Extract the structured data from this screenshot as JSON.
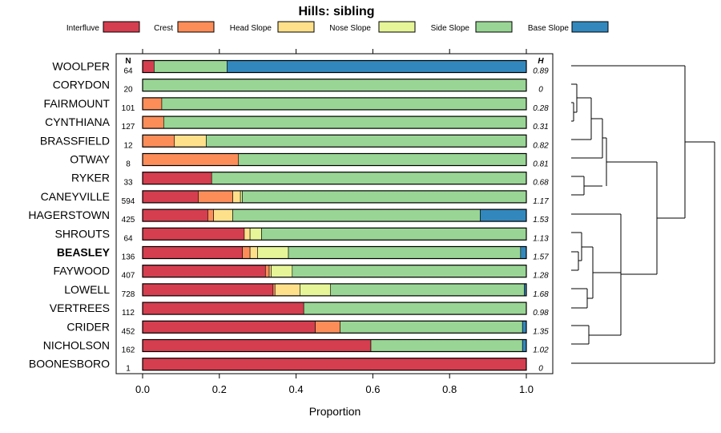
{
  "chart_data": {
    "type": "bar",
    "orientation": "horizontal",
    "stacked": true,
    "title": "Hills: sibling",
    "xlabel": "Proportion",
    "xlim": [
      0,
      1
    ],
    "xticks": [
      "0.0",
      "0.2",
      "0.4",
      "0.6",
      "0.8",
      "1.0"
    ],
    "n_header": "N",
    "h_header": "H",
    "legend_position": "top",
    "series": [
      {
        "name": "Interfluve",
        "color": "#D53E4F"
      },
      {
        "name": "Crest",
        "color": "#FC8D59"
      },
      {
        "name": "Head Slope",
        "color": "#FEE08B"
      },
      {
        "name": "Nose Slope",
        "color": "#E6F598"
      },
      {
        "name": "Side Slope",
        "color": "#99D594"
      },
      {
        "name": "Base Slope",
        "color": "#3288BD"
      }
    ],
    "rows": [
      {
        "label": "WOOLPER",
        "n": "64",
        "h": "0.89",
        "bold": false,
        "values": [
          0.03,
          0,
          0,
          0,
          0.19,
          0.78
        ]
      },
      {
        "label": "CORYDON",
        "n": "20",
        "h": "0",
        "bold": false,
        "values": [
          0,
          0,
          0,
          0,
          1.0,
          0
        ]
      },
      {
        "label": "FAIRMOUNT",
        "n": "101",
        "h": "0.28",
        "bold": false,
        "values": [
          0,
          0.05,
          0,
          0,
          0.95,
          0
        ]
      },
      {
        "label": "CYNTHIANA",
        "n": "127",
        "h": "0.31",
        "bold": false,
        "values": [
          0,
          0.055,
          0,
          0,
          0.945,
          0
        ]
      },
      {
        "label": "BRASSFIELD",
        "n": "12",
        "h": "0.82",
        "bold": false,
        "values": [
          0,
          0.083,
          0.083,
          0,
          0.834,
          0
        ]
      },
      {
        "label": "OTWAY",
        "n": "8",
        "h": "0.81",
        "bold": false,
        "values": [
          0,
          0.25,
          0,
          0,
          0.75,
          0
        ]
      },
      {
        "label": "RYKER",
        "n": "33",
        "h": "0.68",
        "bold": false,
        "values": [
          0.18,
          0,
          0,
          0,
          0.82,
          0
        ]
      },
      {
        "label": "CANEYVILLE",
        "n": "594",
        "h": "1.17",
        "bold": false,
        "values": [
          0.145,
          0.09,
          0.02,
          0.005,
          0.74,
          0
        ]
      },
      {
        "label": "HAGERSTOWN",
        "n": "425",
        "h": "1.53",
        "bold": false,
        "values": [
          0.17,
          0.015,
          0.05,
          0,
          0.645,
          0.12
        ]
      },
      {
        "label": "SHROUTS",
        "n": "64",
        "h": "1.13",
        "bold": false,
        "values": [
          0.265,
          0,
          0.015,
          0.03,
          0.69,
          0
        ]
      },
      {
        "label": "BEASLEY",
        "n": "136",
        "h": "1.57",
        "bold": true,
        "values": [
          0.26,
          0.02,
          0.02,
          0.08,
          0.605,
          0.015
        ]
      },
      {
        "label": "FAYWOOD",
        "n": "407",
        "h": "1.28",
        "bold": false,
        "values": [
          0.32,
          0.01,
          0.005,
          0.055,
          0.61,
          0
        ]
      },
      {
        "label": "LOWELL",
        "n": "728",
        "h": "1.68",
        "bold": false,
        "values": [
          0.34,
          0.005,
          0.065,
          0.08,
          0.505,
          0.005
        ]
      },
      {
        "label": "VERTREES",
        "n": "112",
        "h": "0.98",
        "bold": false,
        "values": [
          0.42,
          0,
          0,
          0,
          0.58,
          0
        ]
      },
      {
        "label": "CRIDER",
        "n": "452",
        "h": "1.35",
        "bold": false,
        "values": [
          0.45,
          0.065,
          0,
          0,
          0.475,
          0.01
        ]
      },
      {
        "label": "NICHOLSON",
        "n": "162",
        "h": "1.02",
        "bold": false,
        "values": [
          0.595,
          0,
          0,
          0,
          0.395,
          0.01
        ]
      },
      {
        "label": "BOONESBORO",
        "n": "1",
        "h": "0",
        "bold": false,
        "values": [
          1.0,
          0,
          0,
          0,
          0,
          0
        ]
      }
    ]
  }
}
